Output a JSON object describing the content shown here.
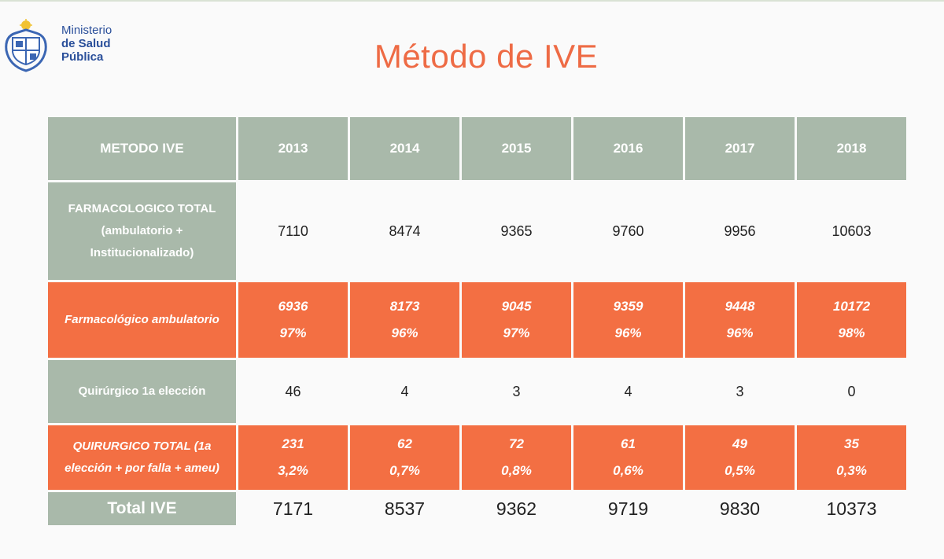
{
  "header": {
    "ministry": [
      "Ministerio",
      "de Salud",
      "Pública"
    ],
    "title": "Método de IVE"
  },
  "table": {
    "corner": "METODO IVE",
    "years": [
      "2013",
      "2014",
      "2015",
      "2016",
      "2017",
      "2018"
    ],
    "rows": [
      {
        "label": [
          "FARMACOLOGICO TOTAL",
          "(ambulatorio +",
          "Institucionalizado)"
        ],
        "style": "white",
        "values": [
          "7110",
          "8474",
          "9365",
          "9760",
          "9956",
          "10603"
        ]
      },
      {
        "label": [
          "Farmacológico ambulatorio"
        ],
        "style": "orange",
        "values": [
          "6936",
          "8173",
          "9045",
          "9359",
          "9448",
          "10172"
        ],
        "percents": [
          "97%",
          "96%",
          "97%",
          "96%",
          "96%",
          "98%"
        ]
      },
      {
        "label": [
          "Quirúrgico 1a elección"
        ],
        "style": "white",
        "values": [
          "46",
          "4",
          "3",
          "4",
          "3",
          "0"
        ]
      },
      {
        "label": [
          "QUIRURGICO TOTAL (1a",
          "elección + por falla + ameu)"
        ],
        "style": "orange",
        "values": [
          "231",
          "62",
          "72",
          "61",
          "49",
          "35"
        ],
        "percents": [
          "3,2%",
          "0,7%",
          "0,8%",
          "0,6%",
          "0,5%",
          "0,3%"
        ]
      }
    ],
    "total": {
      "label": "Total IVE",
      "values": [
        "7171",
        "8537",
        "9362",
        "9719",
        "9830",
        "10373"
      ]
    }
  }
}
